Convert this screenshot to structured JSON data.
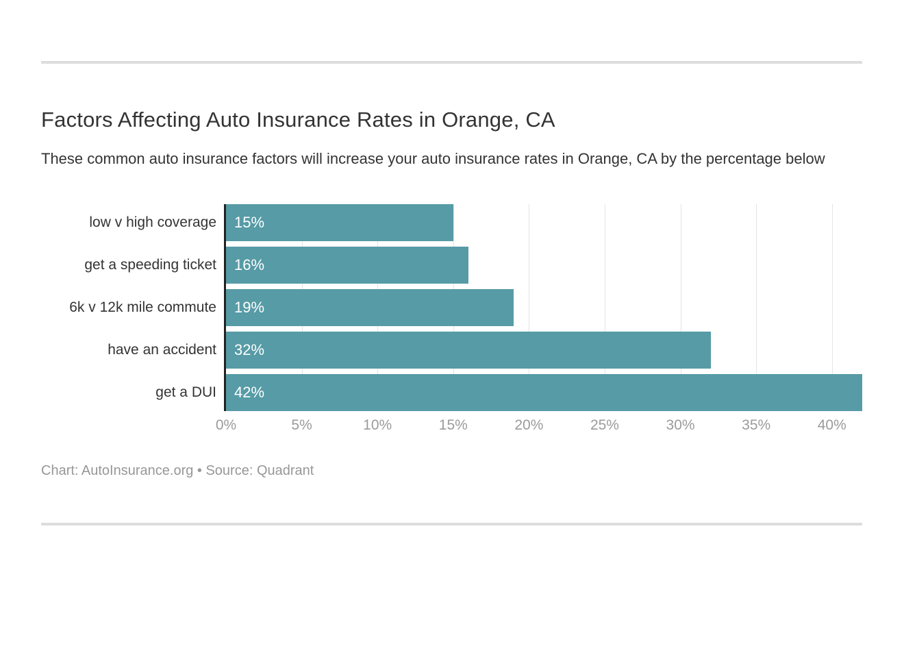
{
  "page": {
    "title": "Factors Affecting Auto Insurance Rates in Orange, CA",
    "subtitle": "These common auto insurance factors will increase your auto insurance rates in Orange, CA by the percentage below",
    "footer": "Chart: AutoInsurance.org • Source: Quadrant"
  },
  "colors": {
    "bar": "#569BA6",
    "axis_line": "#222222",
    "grid_line": "#E4E4E4",
    "tick_text": "#9B9B9B",
    "heading_text": "#333333",
    "body_text": "#333333",
    "footer_text": "#979797",
    "divider": "#DDDDDD",
    "value_text": "#FFFFFF",
    "background": "#FFFFFF"
  },
  "chart_data": {
    "type": "bar",
    "orientation": "horizontal",
    "title": "Factors Affecting Auto Insurance Rates in Orange, CA",
    "subtitle": "These common auto insurance factors will increase your auto insurance rates in Orange, CA by the percentage below",
    "categories": [
      "low v high coverage",
      "get a speeding ticket",
      "6k v 12k mile commute",
      "have an accident",
      "get a DUI"
    ],
    "values": [
      15,
      16,
      19,
      32,
      42
    ],
    "value_labels": [
      "15%",
      "16%",
      "19%",
      "32%",
      "42%"
    ],
    "xlabel": "",
    "ylabel": "",
    "xlim": [
      0,
      42
    ],
    "x_tick_values": [
      0,
      5,
      10,
      15,
      20,
      25,
      30,
      35,
      40
    ],
    "x_ticks": [
      "0%",
      "5%",
      "10%",
      "15%",
      "20%",
      "25%",
      "30%",
      "35%",
      "40%"
    ],
    "grid": "vertical-gridlines-on",
    "legend": "none",
    "attribution": "Chart: AutoInsurance.org • Source: Quadrant"
  }
}
